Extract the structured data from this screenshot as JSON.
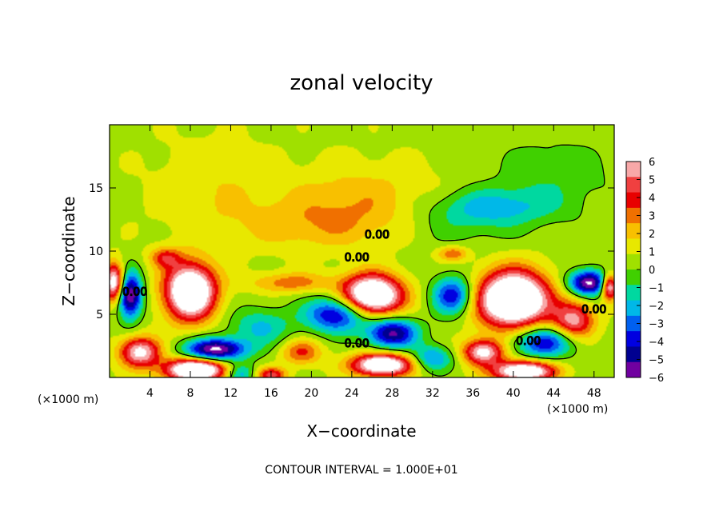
{
  "chart_data": {
    "type": "heatmap",
    "title": "zonal velocity",
    "xlabel": "X−coordinate",
    "ylabel": "Z−coordinate",
    "x_unit": "(×1000 m)",
    "z_unit": "(×1000 m)",
    "footer": "CONTOUR INTERVAL = 1.000E+01",
    "xlim": [
      0,
      50
    ],
    "ylim": [
      0,
      20
    ],
    "x_ticks": [
      "4",
      "8",
      "12",
      "16",
      "20",
      "24",
      "28",
      "32",
      "36",
      "40",
      "44",
      "48"
    ],
    "y_ticks": [
      "5",
      "10",
      "15"
    ],
    "colorbar": {
      "range": [
        -6,
        6
      ],
      "ticks": [
        "6",
        "5",
        "4",
        "3",
        "2",
        "1",
        "0",
        "−1",
        "−2",
        "−3",
        "−4",
        "−5",
        "−6"
      ],
      "colors": [
        "#f8a8a8",
        "#f04040",
        "#e80000",
        "#f07000",
        "#f8c000",
        "#e8e800",
        "#a0e000",
        "#40d000",
        "#00d8a0",
        "#00b8e8",
        "#0060f0",
        "#0000e0",
        "#000090",
        "#7000a0"
      ]
    },
    "contour_labels": [
      "0.00",
      "0.00",
      "0.00",
      "0.00",
      "0.00",
      "0.00"
    ],
    "features": [
      {
        "x": 25,
        "z": 14,
        "value": 1.6,
        "sx": 8,
        "sz": 3
      },
      {
        "x": 10,
        "z": 15,
        "value": 1.0,
        "sx": 6,
        "sz": 4
      },
      {
        "x": 20,
        "z": 12,
        "value": 1.3,
        "sx": 8,
        "sz": 2
      },
      {
        "x": 38,
        "z": 13.5,
        "value": -2.5,
        "sx": 6,
        "sz": 1.5
      },
      {
        "x": 44,
        "z": 16,
        "value": -1.2,
        "sx": 6,
        "sz": 3
      },
      {
        "x": 34,
        "z": 12,
        "value": -1.0,
        "sx": 6,
        "sz": 2
      },
      {
        "x": 8,
        "z": 6.8,
        "value": 9.0,
        "sx": 2.5,
        "sz": 2.2
      },
      {
        "x": 2,
        "z": 6.5,
        "value": -7.0,
        "sx": 1.2,
        "sz": 1.8
      },
      {
        "x": 0.5,
        "z": 7.5,
        "value": 7.0,
        "sx": 1.0,
        "sz": 1.5
      },
      {
        "x": 10.5,
        "z": 2.2,
        "value": -7.0,
        "sx": 3,
        "sz": 0.9
      },
      {
        "x": 8.5,
        "z": 0.6,
        "value": 9.0,
        "sx": 3,
        "sz": 0.9
      },
      {
        "x": 3,
        "z": 2.0,
        "value": 6.0,
        "sx": 2,
        "sz": 1.2
      },
      {
        "x": 26,
        "z": 6.5,
        "value": 9.0,
        "sx": 3,
        "sz": 1.6
      },
      {
        "x": 22.5,
        "z": 5.0,
        "value": -5.5,
        "sx": 3,
        "sz": 1.4
      },
      {
        "x": 28,
        "z": 3.5,
        "value": -6.0,
        "sx": 2.5,
        "sz": 1.2
      },
      {
        "x": 27,
        "z": 1.0,
        "value": 8.0,
        "sx": 3,
        "sz": 0.9
      },
      {
        "x": 40,
        "z": 6.2,
        "value": 10.0,
        "sx": 3.5,
        "sz": 2.2
      },
      {
        "x": 34,
        "z": 6.5,
        "value": -5.0,
        "sx": 2,
        "sz": 1.5
      },
      {
        "x": 43,
        "z": 2.8,
        "value": -5.0,
        "sx": 3,
        "sz": 1.2
      },
      {
        "x": 47.5,
        "z": 7.5,
        "value": -7.0,
        "sx": 2,
        "sz": 1.0
      },
      {
        "x": 49.5,
        "z": 7.2,
        "value": 7.0,
        "sx": 0.8,
        "sz": 1.0
      },
      {
        "x": 41,
        "z": 0.5,
        "value": 8.0,
        "sx": 3,
        "sz": 0.8
      },
      {
        "x": 37,
        "z": 2.0,
        "value": 6.0,
        "sx": 2,
        "sz": 1.0
      },
      {
        "x": 5.5,
        "z": 9.5,
        "value": 3.0,
        "sx": 1.5,
        "sz": 0.8
      },
      {
        "x": 34,
        "z": 9.8,
        "value": 2.8,
        "sx": 1.5,
        "sz": 0.6
      },
      {
        "x": 18,
        "z": 7.5,
        "value": 2.5,
        "sx": 4,
        "sz": 0.8
      },
      {
        "x": 15,
        "z": 4.0,
        "value": -2.5,
        "sx": 3,
        "sz": 1.5
      },
      {
        "x": 19,
        "z": 2.0,
        "value": 3.0,
        "sx": 2,
        "sz": 1.0
      },
      {
        "x": 46,
        "z": 4.5,
        "value": 5.0,
        "sx": 2,
        "sz": 1.5
      },
      {
        "x": 13,
        "z": 0.3,
        "value": -3.0,
        "sx": 1.5,
        "sz": 0.8
      },
      {
        "x": 16,
        "z": 0.2,
        "value": 4.0,
        "sx": 1.5,
        "sz": 0.6
      },
      {
        "x": 32,
        "z": 1.5,
        "value": -3.5,
        "sx": 2,
        "sz": 1.0
      }
    ]
  }
}
